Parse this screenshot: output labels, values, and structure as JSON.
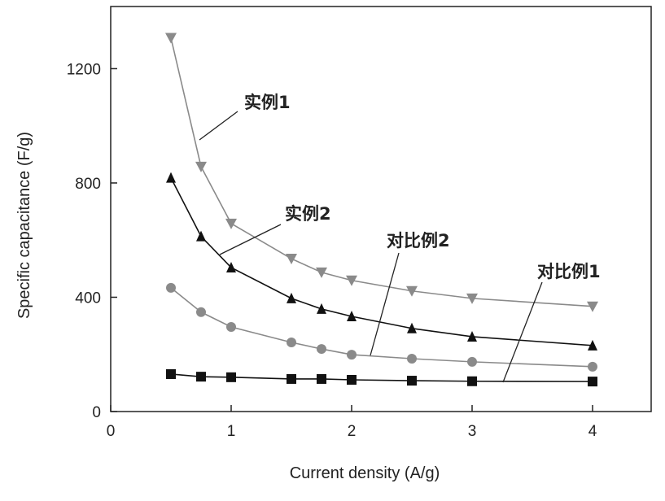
{
  "chart_data": {
    "type": "line",
    "title": "",
    "xlabel": "Current density  (A/g)",
    "ylabel": "Specific capacitance (F/g)",
    "xlim": [
      0,
      4.45
    ],
    "ylim": [
      0,
      1420
    ],
    "xticks": [
      0,
      1,
      2,
      3,
      4
    ],
    "yticks": [
      0,
      400,
      800,
      1200
    ],
    "grid": false,
    "legend": "none (inline annotations)",
    "x": [
      0.5,
      0.75,
      1,
      1.5,
      1.75,
      2,
      2.5,
      3,
      4
    ],
    "series": [
      {
        "name": "实例1",
        "marker": "triangle-down",
        "color": "#8a8a8a",
        "values": [
          1308,
          857,
          658,
          535,
          487,
          459,
          422,
          396,
          368
        ]
      },
      {
        "name": "实例2",
        "marker": "triangle-up",
        "color": "#111111",
        "values": [
          818,
          613,
          504,
          396,
          359,
          333,
          291,
          262,
          231
        ]
      },
      {
        "name": "对比例2",
        "marker": "circle",
        "color": "#8a8a8a",
        "values": [
          433,
          348,
          296,
          242,
          219,
          199,
          185,
          174,
          157
        ]
      },
      {
        "name": "对比例1",
        "marker": "square",
        "color": "#111111",
        "values": [
          131,
          122,
          120,
          114,
          114,
          111,
          108,
          106,
          105
        ]
      }
    ]
  }
}
